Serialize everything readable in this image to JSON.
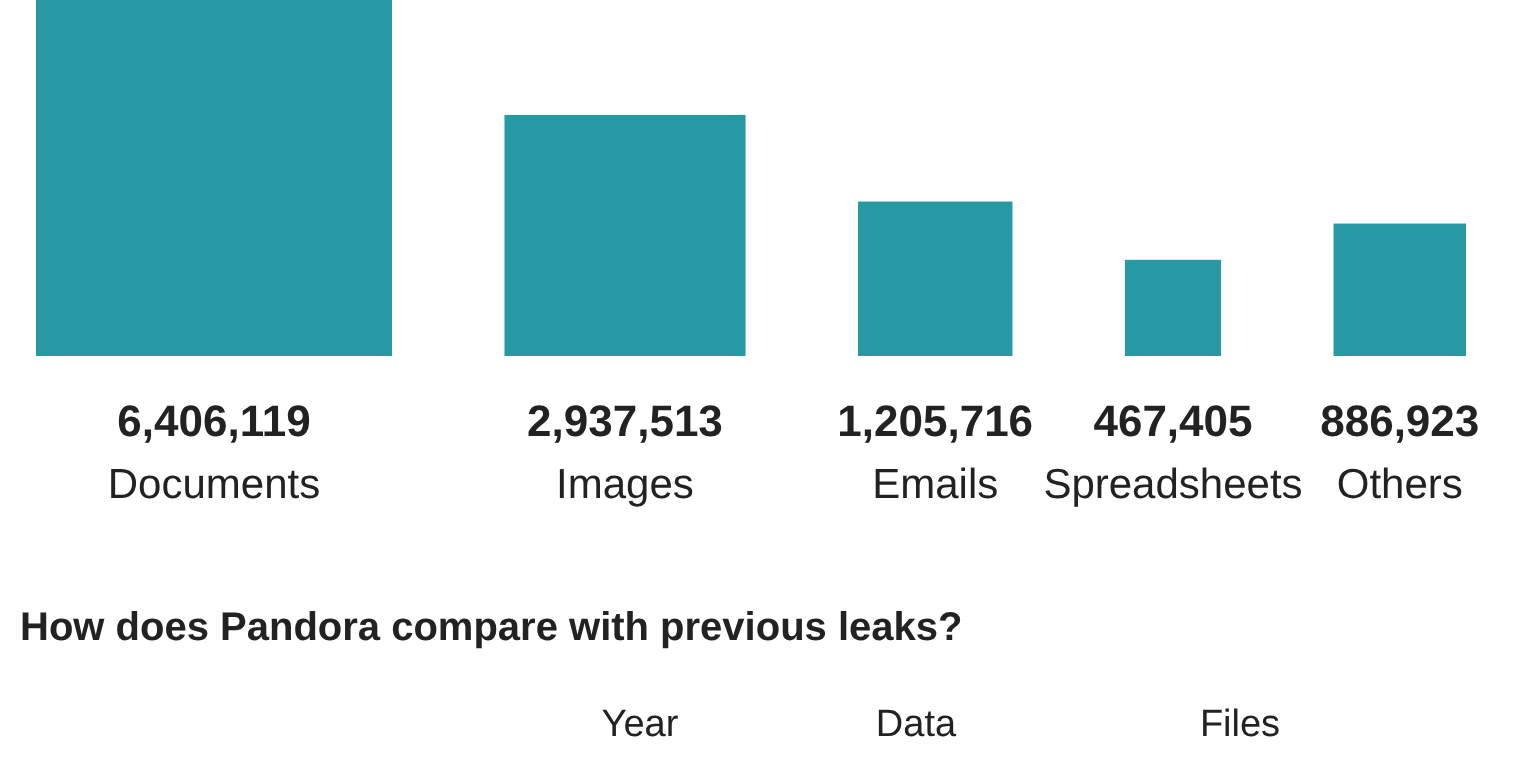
{
  "chart_data": {
    "type": "other",
    "categories": [
      "Documents",
      "Images",
      "Emails",
      "Spreadsheets",
      "Others"
    ],
    "values": [
      6406119,
      2937513,
      1205716,
      467405,
      886923
    ],
    "color": "#2799a4",
    "value_labels": [
      "6,406,119",
      "2,937,513",
      "1,205,716",
      "467,405",
      "886,923"
    ],
    "annotations": [
      "How does Pandora compare with previous leaks?",
      "Year",
      "Data",
      "Files"
    ]
  }
}
